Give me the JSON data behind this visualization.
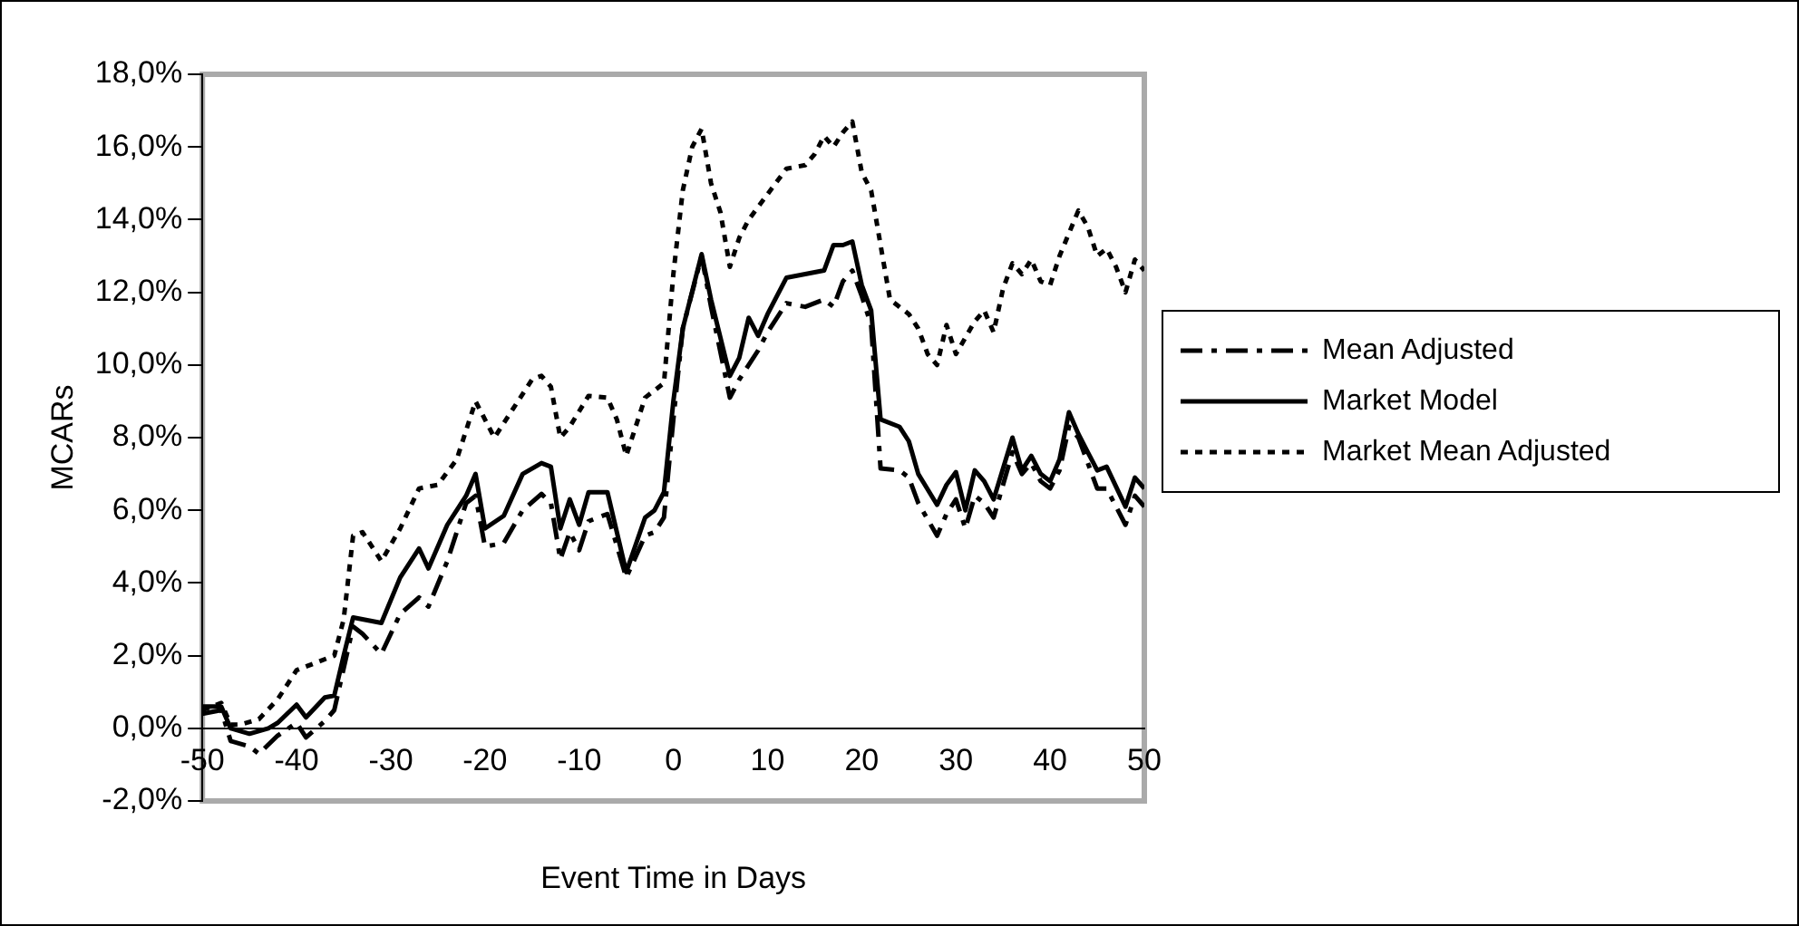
{
  "chart_data": {
    "type": "line",
    "xlabel": "Event Time in Days",
    "ylabel": "MCARs",
    "xlim": [
      -50,
      50
    ],
    "xticks": [
      -50,
      -40,
      -30,
      -20,
      -10,
      0,
      10,
      20,
      30,
      40,
      50
    ],
    "ylim": [
      -2,
      18
    ],
    "yticks": [
      {
        "value": -2,
        "label": "-2,0%"
      },
      {
        "value": 0,
        "label": "0,0%"
      },
      {
        "value": 2,
        "label": "2,0%"
      },
      {
        "value": 4,
        "label": "4,0%"
      },
      {
        "value": 6,
        "label": "6,0%"
      },
      {
        "value": 8,
        "label": "8,0%"
      },
      {
        "value": 10,
        "label": "10,0%"
      },
      {
        "value": 12,
        "label": "12,0%"
      },
      {
        "value": 14,
        "label": "14,0%"
      },
      {
        "value": 16,
        "label": "16,0%"
      },
      {
        "value": 18,
        "label": "18,0%"
      }
    ],
    "grid": false,
    "legend": "right",
    "series": [
      {
        "name": "Mean Adjusted",
        "color": "#000000",
        "line_style": "dashed",
        "x": [
          -50,
          -48,
          -47,
          -45,
          -44,
          -42,
          -40,
          -39,
          -37,
          -36,
          -34,
          -33,
          -31,
          -29,
          -27,
          -26,
          -24,
          -22,
          -21,
          -20,
          -18,
          -16,
          -14,
          -13,
          -12,
          -11,
          -10,
          -9,
          -7,
          -5,
          -3,
          -2,
          -1,
          0,
          1,
          3,
          4,
          6,
          7,
          9,
          10,
          12,
          14,
          16,
          17,
          18,
          19,
          20,
          21,
          22,
          24,
          25,
          26,
          28,
          29,
          30,
          31,
          32,
          33,
          34,
          36,
          37,
          38,
          39,
          40,
          41,
          42,
          43,
          44,
          45,
          46,
          48,
          49,
          50
        ],
        "values": [
          0.4,
          0.5,
          -0.35,
          -0.5,
          -0.7,
          -0.2,
          0.15,
          -0.25,
          0.2,
          0.5,
          2.8,
          2.6,
          2.05,
          3.15,
          3.6,
          3.35,
          4.6,
          6.2,
          6.4,
          5.0,
          5.1,
          6.0,
          6.45,
          6.2,
          4.65,
          5.4,
          4.9,
          5.7,
          5.9,
          4.15,
          5.3,
          5.4,
          5.8,
          8.5,
          11.0,
          13.0,
          11.6,
          9.1,
          9.6,
          10.4,
          10.9,
          11.7,
          11.6,
          11.8,
          11.6,
          12.3,
          12.6,
          11.9,
          11.1,
          7.15,
          7.1,
          6.9,
          6.2,
          5.3,
          5.9,
          6.3,
          5.5,
          6.4,
          6.2,
          5.8,
          7.6,
          7.0,
          7.3,
          6.8,
          6.6,
          7.1,
          8.3,
          8.0,
          7.3,
          6.6,
          6.6,
          5.6,
          6.4,
          6.1
        ]
      },
      {
        "name": "Market Model",
        "color": "#000000",
        "line_style": "solid",
        "x": [
          -50,
          -48,
          -47,
          -45,
          -43,
          -42,
          -40,
          -39,
          -37,
          -36,
          -35,
          -34,
          -31,
          -29,
          -27,
          -26,
          -24,
          -22,
          -21,
          -20,
          -18,
          -16,
          -14,
          -13,
          -12,
          -11,
          -10,
          -9,
          -7,
          -5,
          -3,
          -2,
          -1,
          0,
          1,
          3,
          4,
          6,
          7,
          8,
          9,
          10,
          12,
          14,
          16,
          17,
          18,
          19,
          20,
          21,
          22,
          24,
          25,
          26,
          28,
          29,
          30,
          31,
          32,
          33,
          34,
          36,
          37,
          38,
          39,
          40,
          41,
          42,
          43,
          44,
          45,
          46,
          48,
          49,
          50
        ],
        "values": [
          0.6,
          0.6,
          0.0,
          -0.15,
          0.0,
          0.15,
          0.65,
          0.3,
          0.85,
          0.9,
          2.0,
          3.05,
          2.9,
          4.15,
          4.95,
          4.4,
          5.6,
          6.4,
          7.0,
          5.5,
          5.85,
          7.0,
          7.3,
          7.2,
          5.5,
          6.3,
          5.6,
          6.5,
          6.5,
          4.3,
          5.8,
          6.0,
          6.5,
          9.0,
          11.0,
          13.05,
          11.8,
          9.7,
          10.2,
          11.3,
          10.8,
          11.4,
          12.4,
          12.5,
          12.6,
          13.3,
          13.3,
          13.4,
          12.2,
          11.5,
          8.5,
          8.3,
          7.9,
          7.0,
          6.15,
          6.7,
          7.05,
          6.0,
          7.1,
          6.8,
          6.3,
          8.0,
          7.1,
          7.5,
          7.0,
          6.8,
          7.4,
          8.7,
          8.1,
          7.6,
          7.1,
          7.2,
          6.1,
          6.9,
          6.6
        ]
      },
      {
        "name": "Market Mean Adjusted",
        "color": "#000000",
        "line_style": "dotted",
        "x": [
          -50,
          -48,
          -47,
          -46,
          -44,
          -42,
          -40,
          -38,
          -36,
          -35,
          -34,
          -33,
          -31,
          -29,
          -27,
          -25,
          -23,
          -21,
          -19,
          -17,
          -15,
          -14,
          -13,
          -12,
          -11,
          -9,
          -7,
          -6,
          -5,
          -3,
          -1,
          0,
          1,
          2,
          3,
          4,
          5,
          6,
          7,
          8,
          10,
          12,
          14,
          15,
          16,
          17,
          18,
          19,
          20,
          21,
          22,
          23,
          25,
          26,
          27,
          28,
          29,
          30,
          32,
          33,
          34,
          35,
          36,
          37,
          38,
          39,
          40,
          41,
          43,
          44,
          45,
          46,
          47,
          48,
          49,
          50
        ],
        "values": [
          0.5,
          0.7,
          0.1,
          0.1,
          0.25,
          0.8,
          1.6,
          1.8,
          2.0,
          3.0,
          5.3,
          5.4,
          4.6,
          5.5,
          6.6,
          6.7,
          7.4,
          9.0,
          8.0,
          8.8,
          9.6,
          9.7,
          9.4,
          8.0,
          8.3,
          9.15,
          9.1,
          8.5,
          7.5,
          9.1,
          9.5,
          12.5,
          14.8,
          16.0,
          16.5,
          15.0,
          14.2,
          12.7,
          13.5,
          14.0,
          14.7,
          15.4,
          15.5,
          15.8,
          16.3,
          16.0,
          16.4,
          16.7,
          15.3,
          14.8,
          13.3,
          11.8,
          11.4,
          11.0,
          10.3,
          10.0,
          11.1,
          10.3,
          11.2,
          11.5,
          10.9,
          12.1,
          12.8,
          12.5,
          12.9,
          12.3,
          12.2,
          13.0,
          14.25,
          13.8,
          13.0,
          13.2,
          12.7,
          12.0,
          12.9,
          12.6
        ]
      }
    ]
  }
}
